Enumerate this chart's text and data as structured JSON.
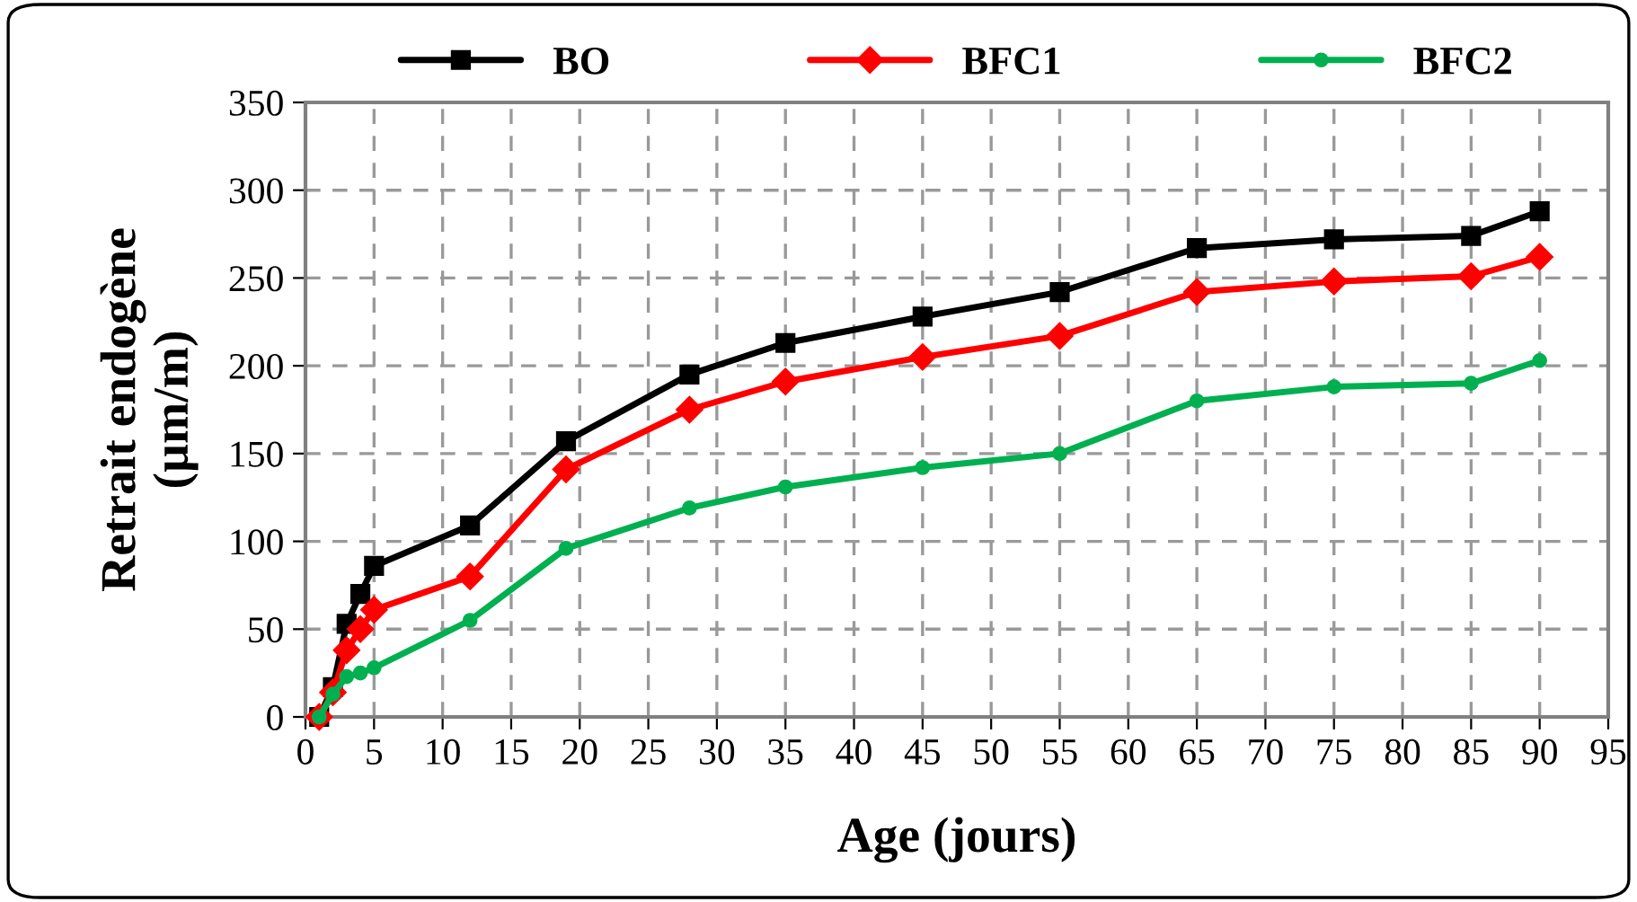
{
  "chart_data": {
    "type": "line",
    "xlabel": "Age (jours)",
    "ylabel": "Retrait endogène\n(µm/m)",
    "x": [
      1,
      2,
      3,
      4,
      5,
      12,
      19,
      28,
      35,
      45,
      55,
      65,
      75,
      85,
      90
    ],
    "series": [
      {
        "name": "BO",
        "color": "#000000",
        "marker": "square",
        "values": [
          0,
          17,
          53,
          70,
          86,
          109,
          157,
          195,
          213,
          228,
          242,
          267,
          272,
          274,
          288
        ]
      },
      {
        "name": "BFC1",
        "color": "#ff0000",
        "marker": "diamond",
        "values": [
          0,
          14,
          38,
          50,
          61,
          80,
          141,
          175,
          191,
          205,
          217,
          242,
          248,
          251,
          262
        ]
      },
      {
        "name": "BFC2",
        "color": "#00b050",
        "marker": "circle",
        "values": [
          0,
          13,
          23,
          25,
          28,
          55,
          96,
          119,
          131,
          142,
          150,
          180,
          188,
          190,
          203
        ]
      }
    ],
    "xlim": [
      0,
      95
    ],
    "xticks": [
      0,
      5,
      10,
      15,
      20,
      25,
      30,
      35,
      40,
      45,
      50,
      55,
      60,
      65,
      70,
      75,
      80,
      85,
      90,
      95
    ],
    "ylim": [
      0,
      350
    ],
    "yticks": [
      0,
      50,
      100,
      150,
      200,
      250,
      300,
      350
    ],
    "grid": true,
    "legend": "top",
    "line_style": "solid"
  }
}
